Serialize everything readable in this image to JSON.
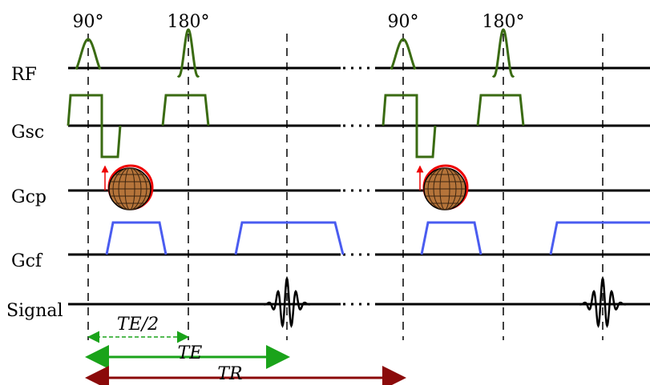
{
  "pulse_labels": [
    "90°",
    "180°",
    "90°",
    "180°"
  ],
  "rows": [
    "RF",
    "Gsc",
    "Gcp",
    "Gcf",
    "Signal"
  ],
  "intervals": [
    "TE/2",
    "TE",
    "TR"
  ]
}
